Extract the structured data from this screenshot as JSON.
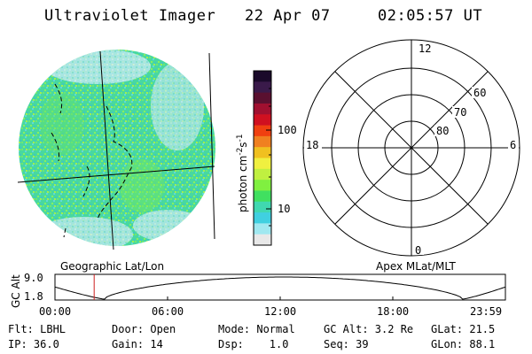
{
  "header": {
    "instrument": "Ultraviolet Imager",
    "date": "22 Apr 07",
    "time": "02:05:57 UT"
  },
  "colorbar": {
    "unit_label": "photon cm-2 s-1",
    "ticks": [
      "100",
      "10"
    ],
    "colors": [
      "#1a0a2a",
      "#3a1a4a",
      "#5a1030",
      "#a01030",
      "#d01020",
      "#f04010",
      "#f08020",
      "#f0c020",
      "#f0f040",
      "#c0f040",
      "#80f040",
      "#40e060",
      "#40d8b0",
      "#40d0e0",
      "#a0e8f0",
      "#e8e8e8"
    ]
  },
  "polar_grid": {
    "mlt_labels": {
      "top": "12",
      "left": "18",
      "right": "6",
      "bottom": "0"
    },
    "lat_labels": [
      "60",
      "70",
      "80"
    ]
  },
  "coord_labels": {
    "left": "Geographic Lat/Lon",
    "right": "Apex MLat/MLT"
  },
  "altitude_plot": {
    "ylabel": "GC Alt",
    "y_ticks": [
      "9.0",
      "1.8"
    ],
    "x_ticks": [
      "00:00",
      "06:00",
      "12:00",
      "18:00",
      "23:59"
    ],
    "current_time_frac": 0.087,
    "marker_color": "#cc2020"
  },
  "info": {
    "flt": "Flt: LBHL",
    "door": "Door: Open",
    "mode": "Mode: Normal",
    "gc_alt": "GC Alt: 3.2 Re",
    "glat": "GLat: 21.5",
    "ip": "IP: 36.0",
    "gain": "Gain: 14",
    "dsp": "Dsp:    1.0",
    "seq": "Seq: 39",
    "glon": "GLon: 88.1"
  }
}
